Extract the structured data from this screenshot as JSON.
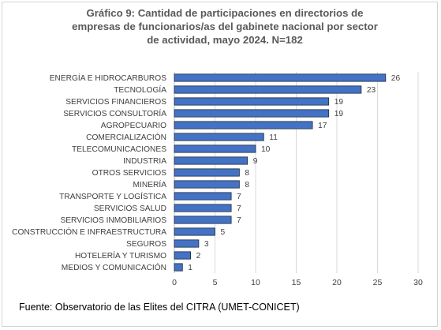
{
  "chart_data": {
    "type": "bar",
    "orientation": "horizontal",
    "title": "Gráfico 9: Cantidad de participaciones en directorios de\nempresas de funcionarios/as del gabinete nacional por sector\nde actividad, mayo 2024. N=182",
    "categories": [
      "ENERGÍA E HIDROCARBUROS",
      "TECNOLOGÍA",
      "SERVICIOS FINANCIEROS",
      "SERVICIOS CONSULTORÍA",
      "AGROPECUARIO",
      "COMERCIALIZACIÓN",
      "TELECOMUNICACIONES",
      "INDUSTRIA",
      "OTROS SERVICIOS",
      "MINERÍA",
      "TRANSPORTE Y LOGÍSTICA",
      "SERVICIOS SALUD",
      "SERVICIOS INMOBILIARIOS",
      "CONSTRUCCIÓN E INFRAESTRUCTURA",
      "SEGUROS",
      "HOTELERÍA Y TURISMO",
      "MEDIOS Y COMUNICACIÓN"
    ],
    "values": [
      26,
      23,
      19,
      19,
      17,
      11,
      10,
      9,
      8,
      8,
      7,
      7,
      7,
      5,
      3,
      2,
      1
    ],
    "xlim": [
      0,
      30
    ],
    "xticks": [
      0,
      5,
      10,
      15,
      20,
      25,
      30
    ],
    "xlabel": "",
    "ylabel": "",
    "grid": true,
    "data_labels": true,
    "bar_color": "#4472c4",
    "bar_edge_color": "#1f2a3c"
  },
  "source": "Fuente: Observatorio de las Elites del CITRA (UMET-CONICET)"
}
